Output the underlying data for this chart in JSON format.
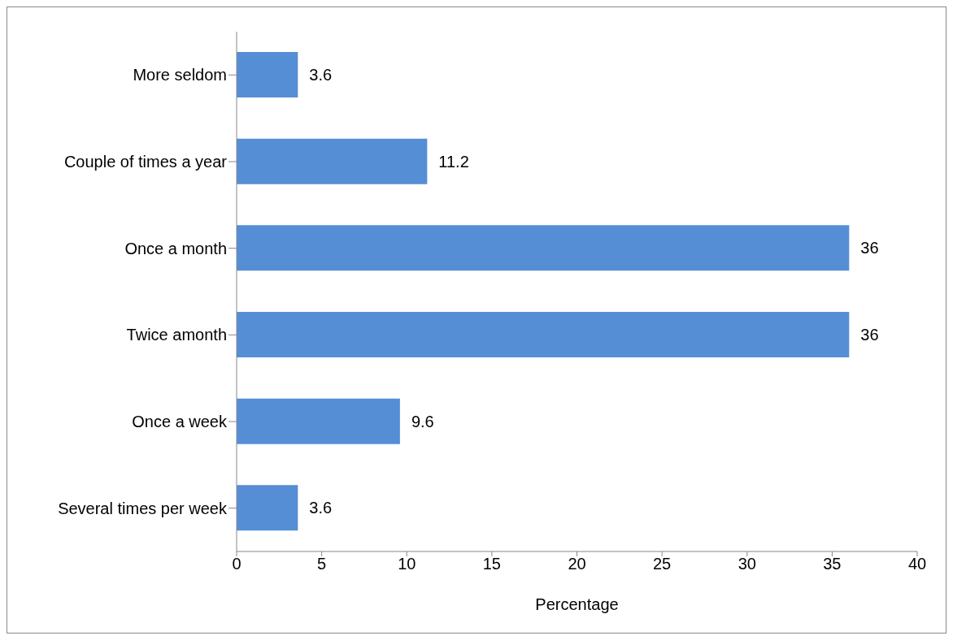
{
  "chart_data": {
    "type": "bar",
    "orientation": "horizontal",
    "categories": [
      "More seldom",
      "Couple of times a year",
      "Once a month",
      "Twice amonth",
      "Once a week",
      "Several times per week"
    ],
    "values": [
      3.6,
      11.2,
      36,
      36,
      9.6,
      3.6
    ],
    "color": "#558ed5",
    "xlim": [
      0,
      40
    ],
    "xticks": [
      0,
      5,
      10,
      15,
      20,
      25,
      30,
      35,
      40
    ],
    "xlabel": "Percentage",
    "data_labels": true,
    "grid": false,
    "legend": false
  }
}
